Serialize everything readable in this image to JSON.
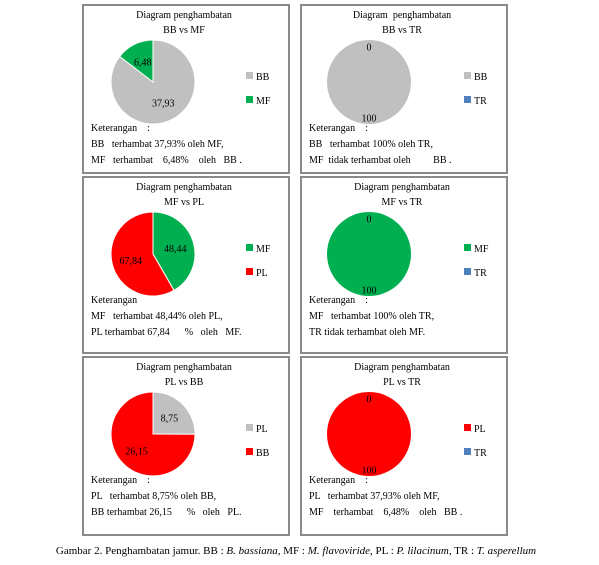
{
  "chart_data": [
    {
      "type": "pie",
      "title": "Diagram penghambatan",
      "subtitle": "BB vs MF",
      "categories": [
        "BB",
        "MF"
      ],
      "values": [
        37.93,
        6.48
      ],
      "value_labels": [
        "37,93",
        "6,48"
      ],
      "colors": [
        "#c0c0c0",
        "#00b050"
      ],
      "notes": [
        "Keterangan    :",
        "BB   terhambat 37,93% oleh MF,",
        "MF   terhambat    6,48%    oleh   BB ."
      ]
    },
    {
      "type": "pie",
      "title": "Diagram  penghambatan",
      "subtitle": "BB vs TR",
      "categories": [
        "BB",
        "TR"
      ],
      "values": [
        100,
        0
      ],
      "colors": [
        "#c0c0c0",
        "#4f81bd"
      ],
      "notes": [
        "Keterangan    :",
        "BB   terhambat 100% oleh TR,",
        "MF  tidak terhambat oleh         BB ."
      ]
    },
    {
      "type": "pie",
      "title": "Diagram penghambatan",
      "subtitle": "MF vs PL",
      "categories": [
        "MF",
        "PL"
      ],
      "values": [
        48.44,
        67.84
      ],
      "value_labels": [
        "48,44",
        "67,84"
      ],
      "colors": [
        "#00b050",
        "#ff0000"
      ],
      "notes": [
        "Keterangan",
        "MF   terhambat 48,44% oleh PL,",
        "PL terhambat 67,84      %   oleh   MF."
      ]
    },
    {
      "type": "pie",
      "title": "Diagram penghambatan",
      "subtitle": "MF vs TR",
      "categories": [
        "MF",
        "TR"
      ],
      "values": [
        100,
        0
      ],
      "colors": [
        "#00b050",
        "#4f81bd"
      ],
      "notes": [
        "Keterangan    :",
        "MF   terhambat 100% oleh TR,",
        "TR tidak terhambat oleh MF."
      ]
    },
    {
      "type": "pie",
      "title": "Diagram penghambatan",
      "subtitle": "PL vs BB",
      "categories": [
        "PL",
        "BB"
      ],
      "values": [
        8.75,
        26.15
      ],
      "value_labels": [
        "8,75",
        "26,15"
      ],
      "colors": [
        "#c0c0c0",
        "#ff0000"
      ],
      "notes": [
        "Keterangan    :",
        "PL   terhambat 8,75% oleh BB,",
        "BB terhambat 26,15      %   oleh   PL."
      ]
    },
    {
      "type": "pie",
      "title": "Diagram penghambatan",
      "subtitle": "PL vs TR",
      "categories": [
        "PL",
        "TR"
      ],
      "values": [
        100,
        0
      ],
      "colors": [
        "#ff0000",
        "#4f81bd"
      ],
      "notes": [
        "Keterangan    :",
        "PL   terhambat 37,93% oleh MF,",
        "MF    terhambat    6,48%    oleh   BB ."
      ]
    }
  ],
  "caption": [
    "Gambar 2. Penghambatan jamur. BB : ",
    "B. bassiana",
    ", MF : ",
    "M. flavoviride",
    ", PL : ",
    "P. lilacinum",
    ", TR : ",
    "T. asperellum"
  ]
}
